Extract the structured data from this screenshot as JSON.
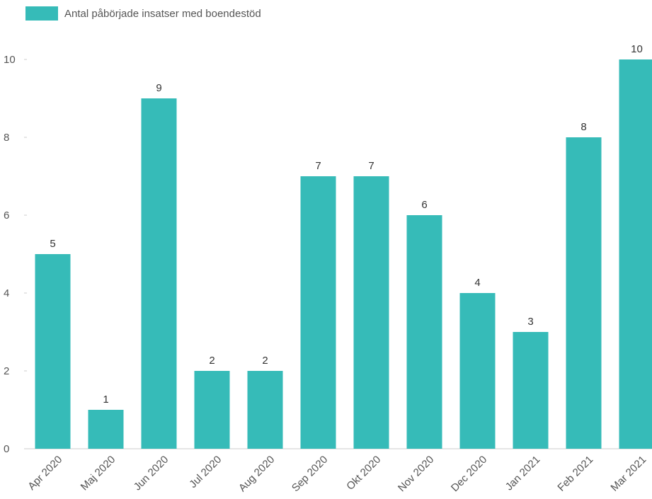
{
  "chart_data": {
    "type": "bar",
    "categories": [
      "Apr 2020",
      "Maj 2020",
      "Jun 2020",
      "Jul 2020",
      "Aug 2020",
      "Sep 2020",
      "Okt 2020",
      "Nov 2020",
      "Dec 2020",
      "Jan 2021",
      "Feb 2021",
      "Mar 2021"
    ],
    "series": [
      {
        "name": "Antal påbörjade insatser med boendestöd",
        "values": [
          5,
          1,
          9,
          2,
          2,
          7,
          7,
          6,
          4,
          3,
          8,
          10
        ]
      }
    ],
    "yticks": [
      "0",
      "2",
      "4",
      "6",
      "8",
      "10"
    ],
    "ylim": [
      0,
      10
    ],
    "grid": false,
    "legend_position": "top-left",
    "colors": {
      "bar": "#36bbb8",
      "axis": "#cccccc"
    }
  }
}
